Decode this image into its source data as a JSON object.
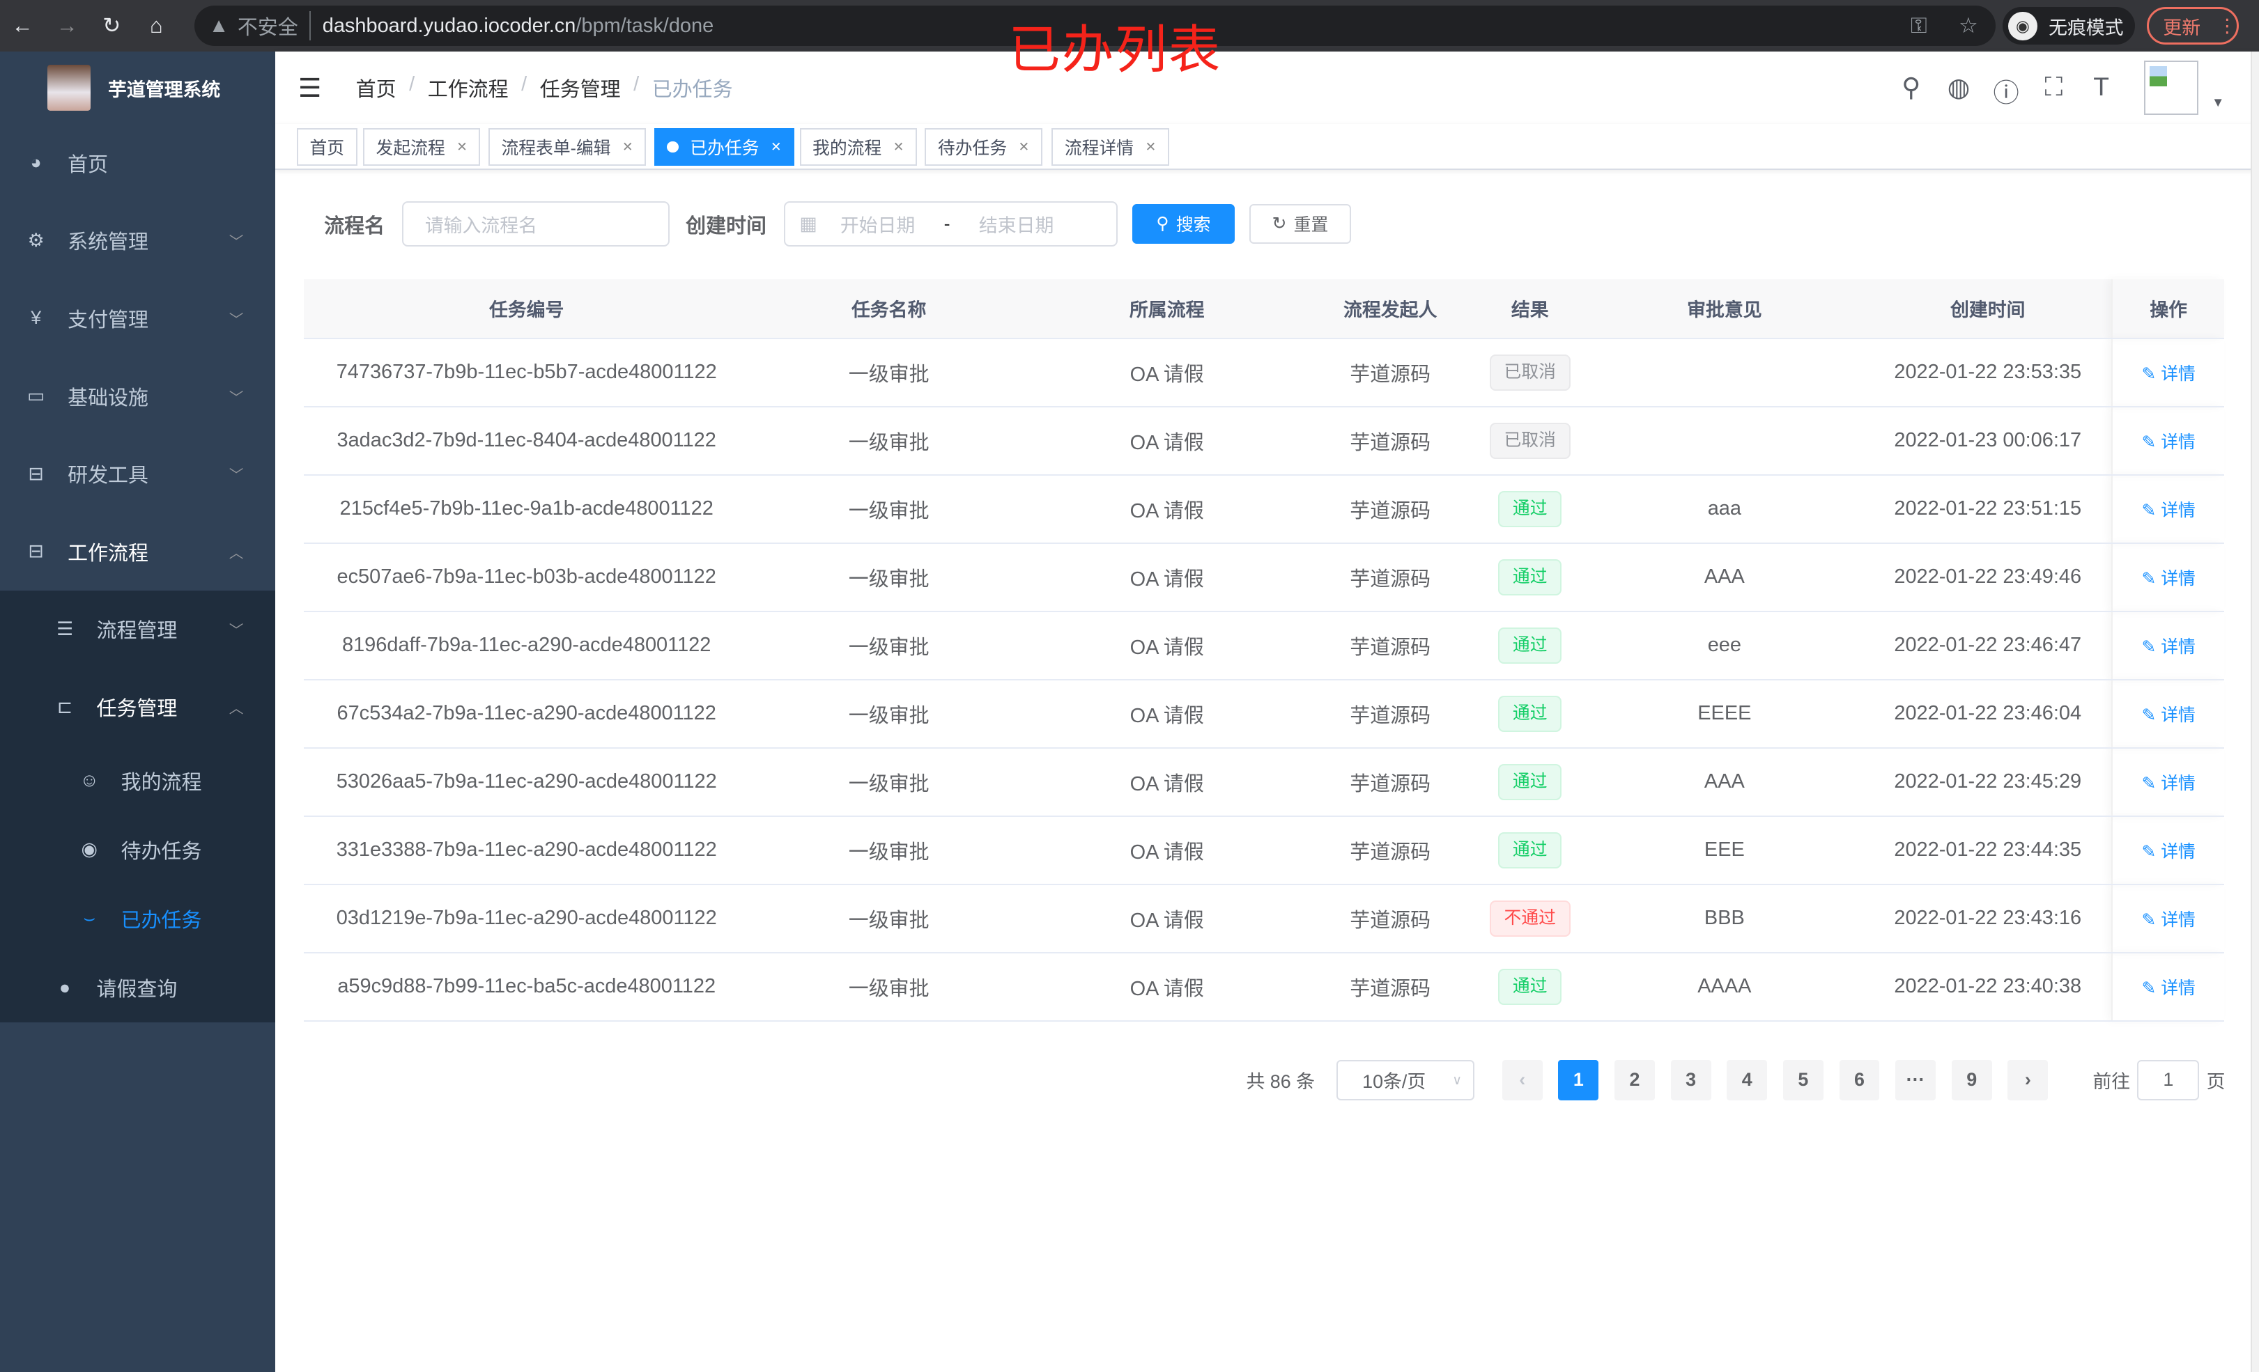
{
  "browser": {
    "insecure": "不安全",
    "url_host": "dashboard.yudao.iocoder.cn",
    "url_path": "/bpm/task/done",
    "incognito": "无痕模式",
    "update": "更新"
  },
  "annotation": "已办列表",
  "sidebar": {
    "title": "芋道管理系统",
    "items": [
      {
        "label": "首页",
        "icon": "dashboard-icon"
      },
      {
        "label": "系统管理",
        "icon": "gear-icon"
      },
      {
        "label": "支付管理",
        "icon": "yen-icon"
      },
      {
        "label": "基础设施",
        "icon": "monitor-icon"
      },
      {
        "label": "研发工具",
        "icon": "toolbox-icon"
      },
      {
        "label": "工作流程",
        "icon": "toolbox-icon"
      }
    ],
    "sub": [
      {
        "label": "流程管理",
        "icon": "list-icon"
      },
      {
        "label": "任务管理",
        "icon": "tree-icon"
      }
    ],
    "sub2": [
      {
        "label": "我的流程",
        "icon": "robot-icon"
      },
      {
        "label": "待办任务",
        "icon": "eye-icon"
      },
      {
        "label": "已办任务",
        "icon": "eye-closed-icon"
      }
    ],
    "leave": {
      "label": "请假查询",
      "icon": "user-icon"
    }
  },
  "breadcrumb": [
    "首页",
    "工作流程",
    "任务管理",
    "已办任务"
  ],
  "tags": [
    "首页",
    "发起流程",
    "流程表单-编辑",
    "已办任务",
    "我的流程",
    "待办任务",
    "流程详情"
  ],
  "active_tag": "已办任务",
  "search": {
    "name_label": "流程名",
    "name_placeholder": "请输入流程名",
    "time_label": "创建时间",
    "start_placeholder": "开始日期",
    "range_sep": "-",
    "end_placeholder": "结束日期",
    "search_btn": "搜索",
    "reset_btn": "重置"
  },
  "table": {
    "columns": [
      "任务编号",
      "任务名称",
      "所属流程",
      "流程发起人",
      "结果",
      "审批意见",
      "创建时间",
      "操作"
    ],
    "action": "详情",
    "rows": [
      {
        "id": "74736737-7b9b-11ec-b5b7-acde48001122",
        "name": "一级审批",
        "process": "OA 请假",
        "starter": "芋道源码",
        "result": "已取消",
        "status": "gray",
        "comment": "",
        "time": "2022-01-22 23:53:35"
      },
      {
        "id": "3adac3d2-7b9d-11ec-8404-acde48001122",
        "name": "一级审批",
        "process": "OA 请假",
        "starter": "芋道源码",
        "result": "已取消",
        "status": "gray",
        "comment": "",
        "time": "2022-01-23 00:06:17"
      },
      {
        "id": "215cf4e5-7b9b-11ec-9a1b-acde48001122",
        "name": "一级审批",
        "process": "OA 请假",
        "starter": "芋道源码",
        "result": "通过",
        "status": "green",
        "comment": "aaa",
        "time": "2022-01-22 23:51:15"
      },
      {
        "id": "ec507ae6-7b9a-11ec-b03b-acde48001122",
        "name": "一级审批",
        "process": "OA 请假",
        "starter": "芋道源码",
        "result": "通过",
        "status": "green",
        "comment": "AAA",
        "time": "2022-01-22 23:49:46"
      },
      {
        "id": "8196daff-7b9a-11ec-a290-acde48001122",
        "name": "一级审批",
        "process": "OA 请假",
        "starter": "芋道源码",
        "result": "通过",
        "status": "green",
        "comment": "eee",
        "time": "2022-01-22 23:46:47"
      },
      {
        "id": "67c534a2-7b9a-11ec-a290-acde48001122",
        "name": "一级审批",
        "process": "OA 请假",
        "starter": "芋道源码",
        "result": "通过",
        "status": "green",
        "comment": "EEEE",
        "time": "2022-01-22 23:46:04"
      },
      {
        "id": "53026aa5-7b9a-11ec-a290-acde48001122",
        "name": "一级审批",
        "process": "OA 请假",
        "starter": "芋道源码",
        "result": "通过",
        "status": "green",
        "comment": "AAA",
        "time": "2022-01-22 23:45:29"
      },
      {
        "id": "331e3388-7b9a-11ec-a290-acde48001122",
        "name": "一级审批",
        "process": "OA 请假",
        "starter": "芋道源码",
        "result": "通过",
        "status": "green",
        "comment": "EEE",
        "time": "2022-01-22 23:44:35"
      },
      {
        "id": "03d1219e-7b9a-11ec-a290-acde48001122",
        "name": "一级审批",
        "process": "OA 请假",
        "starter": "芋道源码",
        "result": "不通过",
        "status": "red",
        "comment": "BBB",
        "time": "2022-01-22 23:43:16"
      },
      {
        "id": "a59c9d88-7b99-11ec-ba5c-acde48001122",
        "name": "一级审批",
        "process": "OA 请假",
        "starter": "芋道源码",
        "result": "通过",
        "status": "green",
        "comment": "AAAA",
        "time": "2022-01-22 23:40:38"
      }
    ]
  },
  "pagination": {
    "total": "共 86 条",
    "page_size": "10条/页",
    "pages": [
      "1",
      "2",
      "3",
      "4",
      "5",
      "6",
      "···",
      "9"
    ],
    "current": "1",
    "goto_label": "前往",
    "goto_value": "1",
    "page_unit": "页"
  },
  "colors": {
    "accent": "#1890ff",
    "sidebar": "#304156",
    "submenu": "#1f2d3d",
    "success": "#13ce66",
    "danger": "#ff4949"
  }
}
